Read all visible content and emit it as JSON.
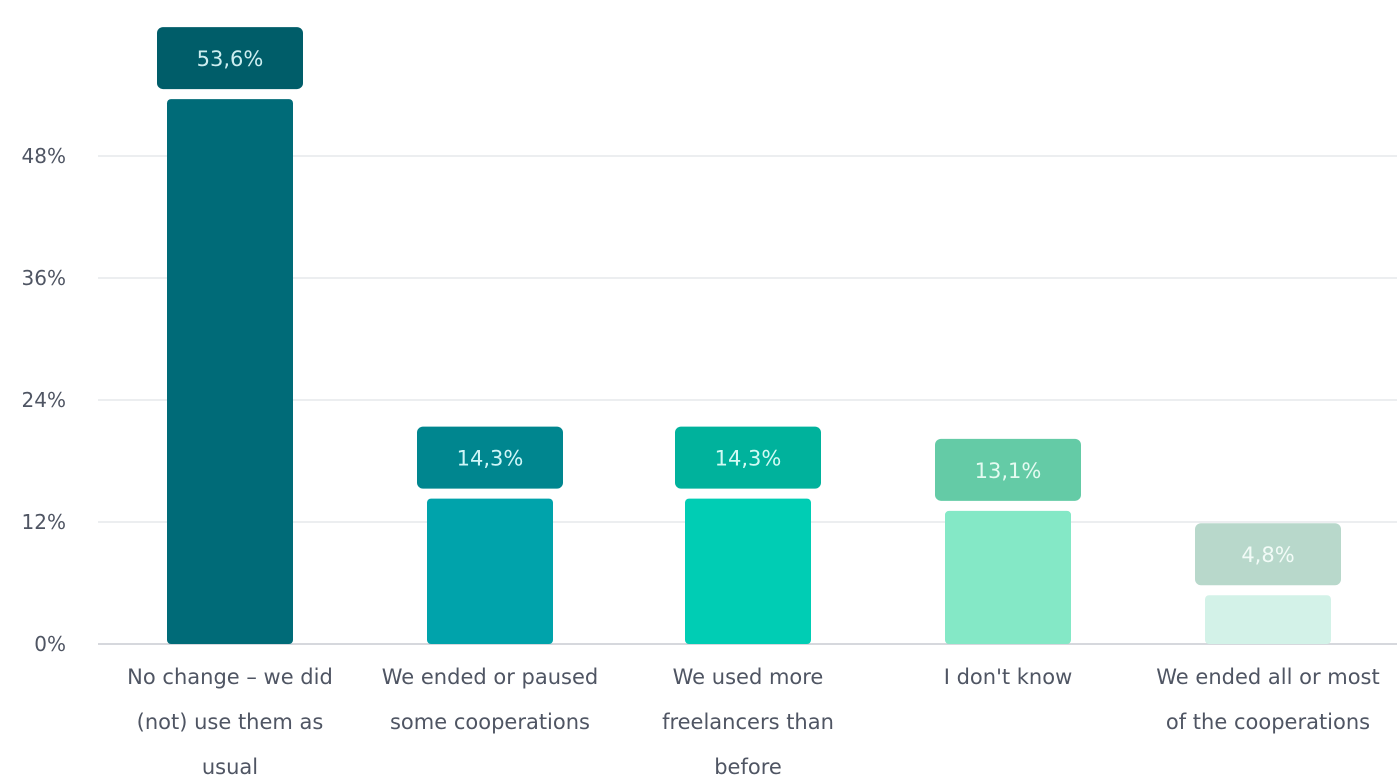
{
  "chart_data": {
    "type": "bar",
    "title": "",
    "xlabel": "",
    "ylabel": "",
    "categories": [
      [
        "No change – we did",
        "(not) use them as",
        "usual"
      ],
      [
        "We ended or paused",
        "some cooperations"
      ],
      [
        "We used more",
        "freelancers than",
        "before"
      ],
      [
        "I don't know"
      ],
      [
        "We ended all or most",
        "of the cooperations"
      ]
    ],
    "values": [
      53.6,
      14.3,
      14.3,
      13.1,
      4.8
    ],
    "data_labels": [
      "53,6%",
      "14,3%",
      "14,3%",
      "13,1%",
      "4,8%"
    ],
    "ylim": [
      0,
      60
    ],
    "yticks": [
      0,
      12,
      24,
      36,
      48
    ],
    "ytick_labels": [
      "0%",
      "12%",
      "24%",
      "36%",
      "48%"
    ],
    "grid": true,
    "legend": "none",
    "bar_colors": [
      "#006b78",
      "#00a3ab",
      "#00cdb4",
      "#84e8c6",
      "#d3f2e8"
    ],
    "label_box_colors": [
      "#005d69",
      "#00868f",
      "#00b29c",
      "#64cba6",
      "#b8d8cb"
    ],
    "label_text_colors": [
      "#cdeef0",
      "#cff6f8",
      "#d2fbf4",
      "#e4fbf1",
      "#f2fbf7"
    ]
  }
}
